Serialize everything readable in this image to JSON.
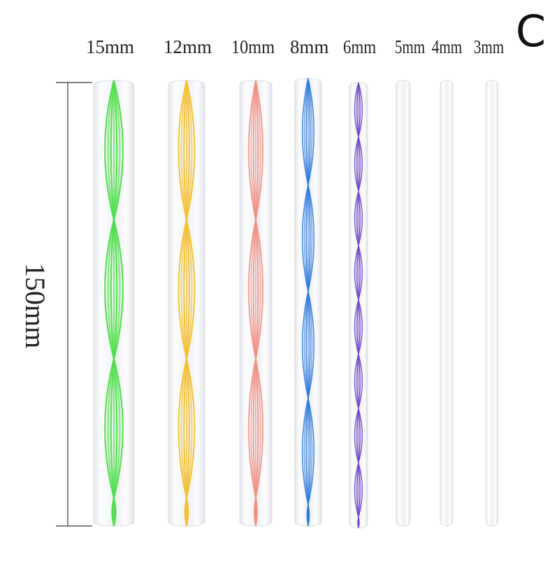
{
  "variant_letter": "C",
  "length_label": "150mm",
  "rods": [
    {
      "label": "15mm",
      "color": "#4ee24a"
    },
    {
      "label": "12mm",
      "color": "#f7c12c"
    },
    {
      "label": "10mm",
      "color": "#f48f82"
    },
    {
      "label": "8mm",
      "color": "#2a7be6"
    },
    {
      "label": "6mm",
      "color": "#6a3ad0"
    },
    {
      "label": "5mm",
      "color": ""
    },
    {
      "label": "4mm",
      "color": ""
    },
    {
      "label": "3mm",
      "color": ""
    }
  ]
}
